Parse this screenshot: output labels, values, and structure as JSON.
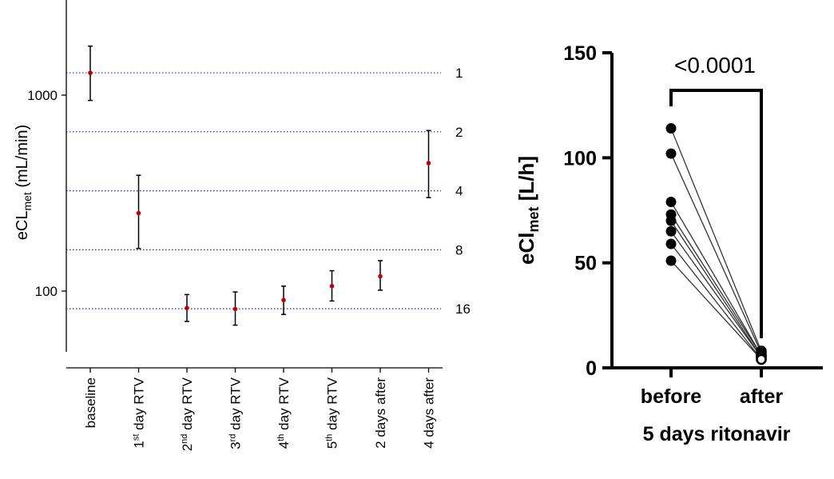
{
  "chart_data": [
    {
      "type": "scatter",
      "title": "",
      "xlabel": "",
      "ylabel": "eCL",
      "ylabel_sub": "met",
      "ylabel_unit": " (mL/min)",
      "y_scale": "log",
      "ylim": [
        50,
        3000
      ],
      "yticks": [
        {
          "value": 100,
          "label": "100"
        },
        {
          "value": 1000,
          "label": "1000"
        }
      ],
      "categories": [
        {
          "main": "baseline",
          "sup": "",
          "rest": ""
        },
        {
          "main": "1",
          "sup": "st",
          "rest": " day RTV"
        },
        {
          "main": "2",
          "sup": "nd",
          "rest": " day RTV"
        },
        {
          "main": "3",
          "sup": "rd",
          "rest": " day RTV"
        },
        {
          "main": "4",
          "sup": "th",
          "rest": " day RTV"
        },
        {
          "main": "5",
          "sup": "th",
          "rest": " day RTV"
        },
        {
          "main": "2 days after",
          "sup": "",
          "rest": ""
        },
        {
          "main": "4 days after",
          "sup": "",
          "rest": ""
        }
      ],
      "values": [
        1300,
        250,
        82,
        81,
        90,
        106,
        119,
        450
      ],
      "error_low": [
        940,
        165,
        70,
        67,
        76,
        89,
        101,
        300
      ],
      "error_high": [
        1780,
        390,
        96,
        99,
        106,
        127,
        143,
        660
      ],
      "reference_lines": [
        {
          "value": 1300,
          "label": "1"
        },
        {
          "value": 650,
          "label": "2"
        },
        {
          "value": 325,
          "label": "4"
        },
        {
          "value": 162.5,
          "label": "8"
        },
        {
          "value": 81.25,
          "label": "16"
        }
      ],
      "marker_color": "#c00000",
      "line_color": "#1f2a8c"
    },
    {
      "type": "scatter",
      "title": "",
      "xlabel": "5 days ritonavir",
      "ylabel": "eCl",
      "ylabel_sub": "met",
      "ylabel_unit": " [L/h]",
      "ylim": [
        0,
        150
      ],
      "yticks": [
        0,
        50,
        100,
        150
      ],
      "categories": [
        "before",
        "after"
      ],
      "paired_values": [
        [
          114,
          8
        ],
        [
          102,
          7
        ],
        [
          79,
          6
        ],
        [
          73,
          6
        ],
        [
          70,
          5
        ],
        [
          65,
          5
        ],
        [
          59,
          4
        ],
        [
          51,
          4
        ]
      ],
      "annotation": "<0.0001"
    }
  ]
}
